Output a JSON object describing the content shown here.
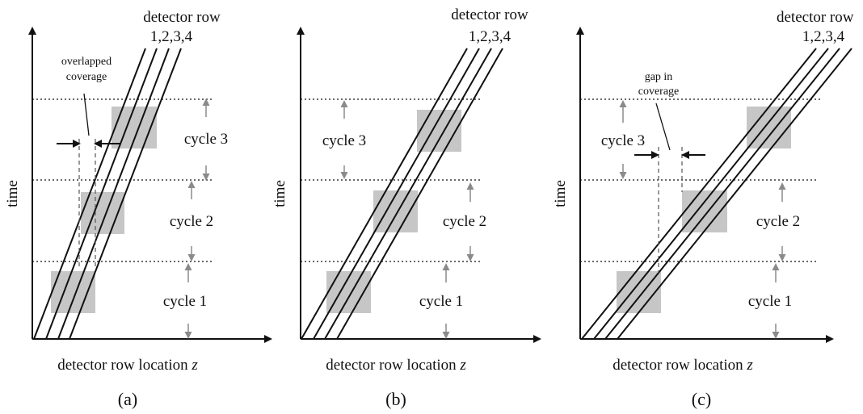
{
  "panels": [
    {
      "caption": "(a)",
      "y_label": "time",
      "x_label_text": "detector row location ",
      "x_label_var": "z",
      "row_header": "detector row",
      "row_numbers": "1,2,3,4",
      "cycles": [
        "cycle 1",
        "cycle 2",
        "cycle 3"
      ],
      "annotation": [
        "overlapped",
        "coverage"
      ]
    },
    {
      "caption": "(b)",
      "y_label": "time",
      "x_label_text": "detector row location ",
      "x_label_var": "z",
      "row_header": "detector row",
      "row_numbers": "1,2,3,4",
      "cycles": [
        "cycle 1",
        "cycle 2",
        "cycle 3"
      ],
      "annotation": []
    },
    {
      "caption": "(c)",
      "y_label": "time",
      "x_label_text": "detector row location ",
      "x_label_var": "z",
      "row_header": "detector row",
      "row_numbers": "1,2,3,4",
      "cycles": [
        "cycle 1",
        "cycle 2",
        "cycle 3"
      ],
      "annotation": [
        "gap in",
        "coverage"
      ]
    }
  ],
  "colors": {
    "axis": "#111111",
    "scan_line": "#111111",
    "block_fill": "#c6c6c6",
    "cycle_arrow": "#8a8a8a",
    "dashed": "#555555"
  }
}
